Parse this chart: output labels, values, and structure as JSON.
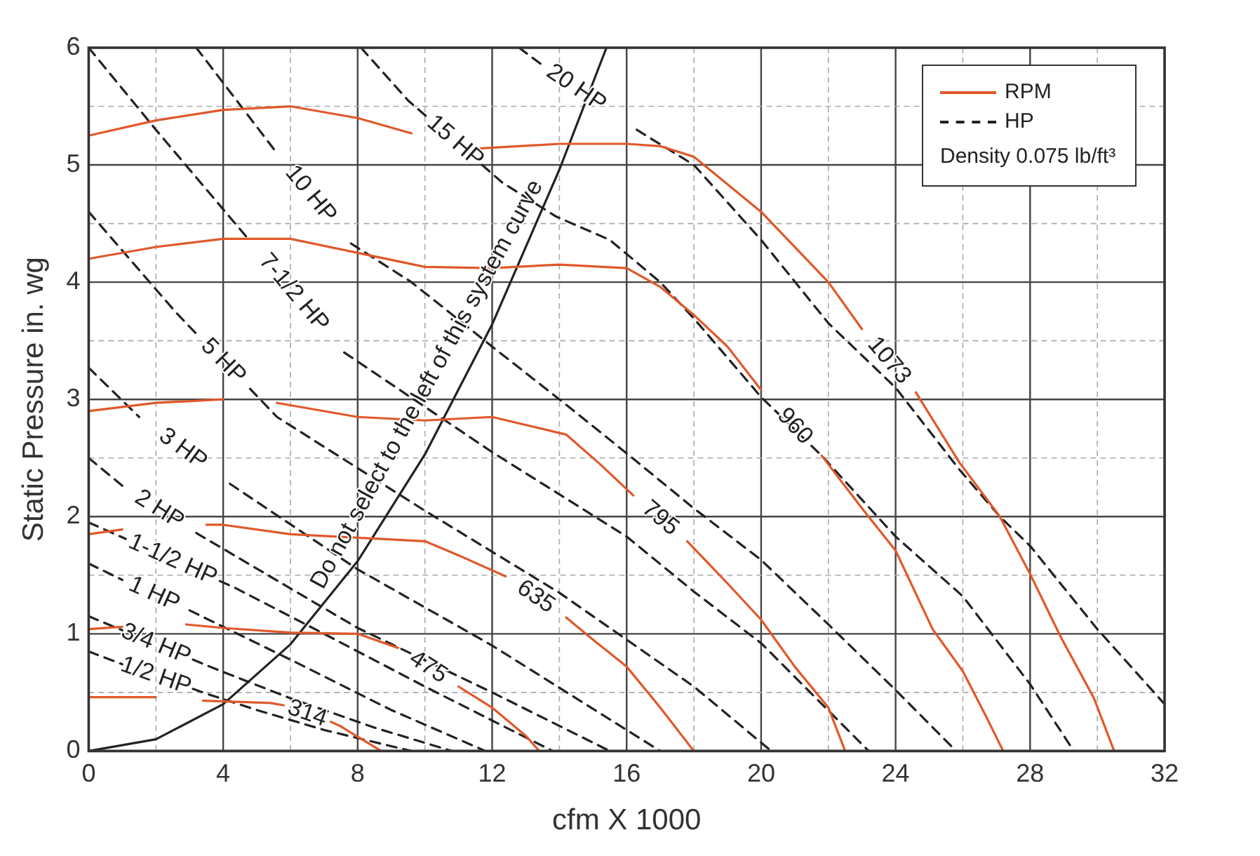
{
  "chart_data": {
    "type": "line",
    "xlabel": "cfm X 1000",
    "ylabel": "Static Pressure in. wg",
    "subtitle": "Density 0.075 lb/ft³",
    "xlim": [
      0,
      32
    ],
    "ylim": [
      0,
      6
    ],
    "xticks": [
      0,
      {
        "value": 2,
        "label": null
      },
      4,
      {
        "value": 6,
        "label": null
      },
      8,
      {
        "value": 10,
        "label": null
      },
      12,
      {
        "value": 14,
        "label": null
      },
      16,
      {
        "value": 18,
        "label": null
      },
      20,
      {
        "value": 22,
        "label": null
      },
      24,
      {
        "value": 26,
        "label": null
      },
      28,
      {
        "value": 30,
        "label": null
      },
      32
    ],
    "yticks": [
      0,
      {
        "value": 0.5,
        "label": null
      },
      1,
      {
        "value": 1.5,
        "label": null
      },
      2,
      {
        "value": 2.5,
        "label": null
      },
      3,
      {
        "value": 3.5,
        "label": null
      },
      4,
      {
        "value": 4.5,
        "label": null
      },
      5,
      {
        "value": 5.5,
        "label": null
      },
      6
    ],
    "grid": true,
    "annotations": [
      "RPM",
      "HP"
    ],
    "series": [
      {
        "name": "1073",
        "color": "#e0582a",
        "line_style": "solid",
        "x": [
          0,
          2,
          4,
          6,
          8,
          9.6,
          10.6,
          11.6,
          14,
          16,
          17,
          18,
          20,
          22,
          23,
          23.8,
          24.6,
          25.9,
          27.1,
          28,
          28.9,
          29.9,
          30.5
        ],
        "values": [
          5.25,
          5.38,
          5.47,
          5.5,
          5.4,
          5.27,
          null,
          5.14,
          5.18,
          5.18,
          5.16,
          5.07,
          4.6,
          4.0,
          3.6,
          null,
          3.06,
          2.46,
          2.0,
          1.51,
          0.98,
          0.45,
          0
        ]
      },
      {
        "name": "960",
        "color": "#e0582a",
        "line_style": "solid",
        "x": [
          0,
          2,
          4,
          6,
          8,
          10,
          12,
          14,
          16,
          17,
          18,
          19,
          20,
          21,
          21.8,
          23,
          24,
          25.1,
          26,
          26.7,
          27.2
        ],
        "values": [
          4.2,
          4.3,
          4.37,
          4.37,
          4.25,
          4.13,
          4.12,
          4.15,
          4.12,
          3.96,
          3.72,
          3.45,
          3.08,
          null,
          2.52,
          2.07,
          1.71,
          1.04,
          0.68,
          0.29,
          0
        ]
      },
      {
        "name": "795",
        "color": "#e0582a",
        "line_style": "solid",
        "x": [
          0,
          2,
          4,
          5,
          5.6,
          8,
          10,
          12,
          14.2,
          15.2,
          16.2,
          17,
          17.8,
          19,
          20,
          21,
          22,
          22.5
        ],
        "values": [
          2.9,
          2.97,
          3.0,
          null,
          2.97,
          2.85,
          2.82,
          2.85,
          2.7,
          2.45,
          2.18,
          null,
          1.79,
          1.43,
          1.12,
          0.72,
          0.37,
          0
        ]
      },
      {
        "name": "635",
        "color": "#e0582a",
        "line_style": "solid",
        "x": [
          0,
          1,
          2.2,
          3.5,
          4,
          6,
          8,
          10,
          11,
          12.4,
          13.3,
          14.2,
          15,
          16,
          17,
          18
        ],
        "values": [
          1.85,
          1.89,
          null,
          1.93,
          1.93,
          1.85,
          1.82,
          1.79,
          1.67,
          1.49,
          null,
          1.14,
          0.95,
          0.72,
          0.37,
          0
        ]
      },
      {
        "name": "475",
        "color": "#e0582a",
        "line_style": "solid",
        "x": [
          0,
          1,
          2,
          2.9,
          4,
          6,
          8,
          9.2,
          10.1,
          11,
          12,
          13,
          13.4
        ],
        "values": [
          1.04,
          1.06,
          null,
          1.08,
          1.05,
          1.01,
          1.0,
          0.88,
          null,
          0.55,
          0.37,
          0.13,
          0
        ]
      },
      {
        "name": "314",
        "color": "#e0582a",
        "line_style": "solid",
        "x": [
          0,
          2,
          2.75,
          3.4,
          5.4,
          5.8,
          6.5,
          7.2,
          7.5,
          8.7
        ],
        "values": [
          0.46,
          0.46,
          null,
          0.43,
          0.41,
          0.39,
          null,
          0.25,
          0.21,
          0
        ]
      },
      {
        "name": "1/2 HP",
        "color": "#222222",
        "line_style": "dashed",
        "x": [
          0,
          1,
          2,
          3.1,
          3.6,
          5,
          7,
          9.6
        ],
        "values": [
          0.85,
          0.74,
          null,
          0.53,
          0.48,
          0.35,
          0.18,
          0
        ]
      },
      {
        "name": "3/4 HP",
        "color": "#222222",
        "line_style": "dashed",
        "x": [
          0,
          1,
          2,
          3.1,
          3.6,
          6,
          8.5,
          10.8
        ],
        "values": [
          1.15,
          1.03,
          null,
          0.78,
          0.72,
          0.45,
          0.2,
          0
        ]
      },
      {
        "name": "1 HP",
        "color": "#222222",
        "line_style": "dashed",
        "x": [
          0,
          1,
          1.95,
          3,
          6,
          9,
          11.8
        ],
        "values": [
          1.6,
          1.46,
          null,
          1.2,
          0.78,
          0.35,
          0
        ]
      },
      {
        "name": "1-1/2 HP",
        "color": "#222222",
        "line_style": "dashed",
        "x": [
          0,
          1.1,
          2.5,
          3.9,
          4.3,
          7,
          10,
          13.8
        ],
        "values": [
          1.95,
          1.81,
          null,
          1.45,
          1.4,
          1.0,
          0.55,
          0
        ]
      },
      {
        "name": "2 HP",
        "color": "#222222",
        "line_style": "dashed",
        "x": [
          0,
          1.1,
          2.1,
          3.2,
          8,
          12,
          15.5
        ],
        "values": [
          2.5,
          2.24,
          null,
          1.86,
          1.05,
          0.5,
          0
        ]
      },
      {
        "name": "3 HP",
        "color": "#222222",
        "line_style": "dashed",
        "x": [
          0,
          1.5,
          2.8,
          4.2,
          8,
          12,
          17
        ],
        "values": [
          3.27,
          2.85,
          null,
          2.28,
          1.55,
          0.9,
          0
        ]
      },
      {
        "name": "5 HP",
        "color": "#222222",
        "line_style": "dashed",
        "x": [
          0,
          2.6,
          3.2,
          4,
          4.8,
          5.6,
          10,
          14,
          18,
          20.3
        ],
        "values": [
          4.6,
          3.74,
          3.56,
          null,
          3.09,
          2.85,
          2.05,
          1.35,
          0.55,
          0
        ]
      },
      {
        "name": "7-1/2 HP",
        "color": "#222222",
        "line_style": "dashed",
        "x": [
          0,
          2,
          4.8,
          6.1,
          7.6,
          12,
          16,
          18,
          20,
          23.2
        ],
        "values": [
          6,
          5.3,
          4.35,
          null,
          3.4,
          2.55,
          1.83,
          1.36,
          0.92,
          0
        ]
      },
      {
        "name": "10 HP",
        "color": "#222222",
        "line_style": "dashed",
        "x": [
          3.2,
          5.6,
          6.6,
          7.8,
          9.6,
          12,
          14,
          16,
          18,
          20,
          22,
          24,
          25.8
        ],
        "values": [
          6,
          5.1,
          null,
          4.33,
          4.0,
          3.45,
          3.0,
          2.54,
          2.07,
          1.63,
          1.08,
          0.52,
          0
        ]
      },
      {
        "name": "15 HP",
        "color": "#222222",
        "line_style": "dashed",
        "x": [
          8.1,
          9.5,
          10.1,
          10.9,
          11.7,
          12.3,
          13.9,
          15.5,
          17,
          18,
          20,
          21.8,
          24,
          26,
          28,
          29.3
        ],
        "values": [
          6,
          5.55,
          5.4,
          null,
          5.0,
          4.85,
          4.56,
          4.36,
          4.0,
          3.69,
          3.02,
          2.52,
          1.83,
          1.32,
          0.57,
          0
        ]
      },
      {
        "name": "20 HP",
        "color": "#222222",
        "line_style": "dashed",
        "x": [
          12.8,
          13.5,
          14.5,
          16.3,
          18,
          20,
          22,
          24,
          25.9,
          27.1,
          28,
          30,
          32
        ],
        "values": [
          6,
          5.85,
          null,
          5.3,
          5.0,
          4.36,
          3.65,
          3.1,
          2.4,
          2.0,
          1.75,
          1.04,
          0.4
        ]
      },
      {
        "name": "Do not select to the left of this system curve",
        "color": "#222222",
        "line_style": "solid",
        "x": [
          0,
          2,
          4,
          6,
          8,
          10,
          12,
          14,
          15.4
        ],
        "values": [
          0,
          0.1,
          0.4,
          0.91,
          1.62,
          2.53,
          3.64,
          4.96,
          6
        ]
      }
    ]
  }
}
